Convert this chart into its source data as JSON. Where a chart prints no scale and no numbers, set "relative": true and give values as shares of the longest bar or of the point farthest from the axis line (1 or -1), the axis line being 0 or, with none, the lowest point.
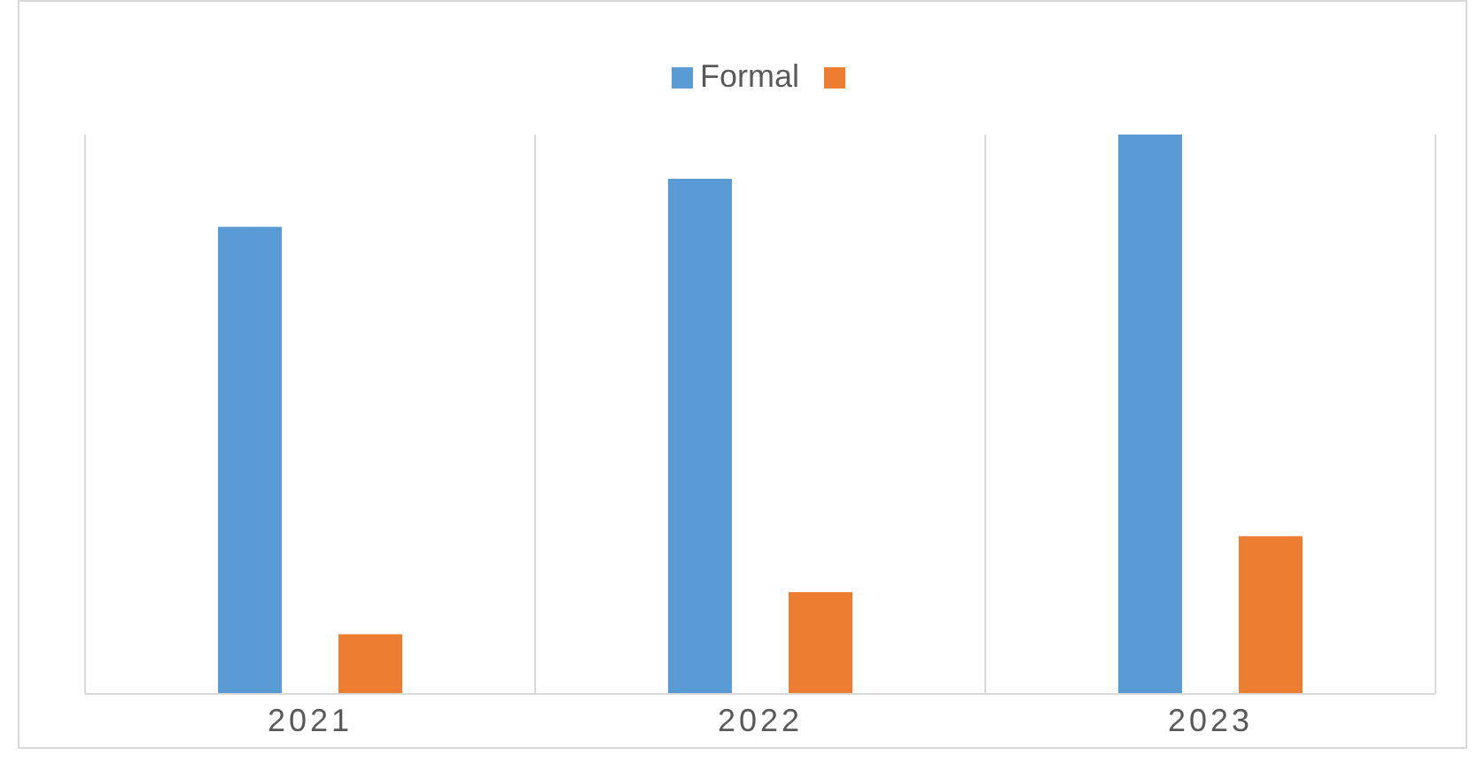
{
  "chart_data": {
    "type": "bar",
    "relative": true,
    "categories": [
      "2021",
      "2022",
      "2023"
    ],
    "series": [
      {
        "name": "Formal",
        "color": "#5b9bd5",
        "values": [
          0.835,
          0.921,
          1
        ]
      },
      {
        "color": "#ed7d31",
        "values": [
          0.107,
          0.182,
          0.282
        ]
      }
    ],
    "grid": "x",
    "legend": "top"
  }
}
